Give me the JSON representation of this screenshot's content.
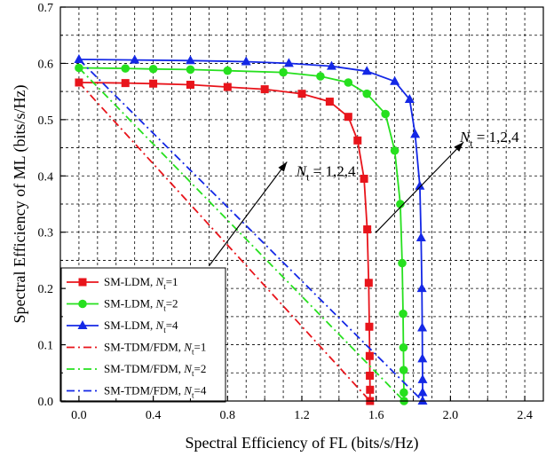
{
  "chart_data": {
    "type": "line",
    "title": "",
    "xlabel": "Spectral Efficiency of FL (bits/s/Hz)",
    "ylabel": "Spectral Efficiency of ML  (bits/s/Hz)",
    "xlim": [
      -0.1,
      2.5
    ],
    "ylim": [
      0.0,
      0.7
    ],
    "x_ticks": [
      0.0,
      0.4,
      0.8,
      1.2,
      1.6,
      2.0,
      2.4
    ],
    "x_tick_labels": [
      "0.0",
      "0.4",
      "0.8",
      "1.2",
      "1.6",
      "2.0",
      "2.4"
    ],
    "y_ticks": [
      0.0,
      0.1,
      0.2,
      0.3,
      0.4,
      0.5,
      0.6,
      0.7
    ],
    "y_tick_labels": [
      "0.0",
      "0.1",
      "0.2",
      "0.3",
      "0.4",
      "0.5",
      "0.6",
      "0.7"
    ],
    "grid": true,
    "legend_position": "bottom-left",
    "series": [
      {
        "legend_prefix": "SM-LDM, ",
        "subscript_base": "N",
        "subscript": "t",
        "legend_suffix": "=1",
        "color": "#e8141b",
        "marker": "square",
        "dash": "solid",
        "points": [
          [
            0.0,
            0.566
          ],
          [
            0.25,
            0.565
          ],
          [
            0.4,
            0.564
          ],
          [
            0.6,
            0.562
          ],
          [
            0.8,
            0.558
          ],
          [
            1.0,
            0.554
          ],
          [
            1.2,
            0.546
          ],
          [
            1.35,
            0.532
          ],
          [
            1.45,
            0.505
          ],
          [
            1.5,
            0.463
          ],
          [
            1.535,
            0.395
          ],
          [
            1.552,
            0.305
          ],
          [
            1.56,
            0.21
          ],
          [
            1.563,
            0.132
          ],
          [
            1.565,
            0.08
          ],
          [
            1.566,
            0.045
          ],
          [
            1.567,
            0.02
          ],
          [
            1.567,
            0.0
          ]
        ]
      },
      {
        "legend_prefix": "SM-LDM, ",
        "subscript_base": "N",
        "subscript": "t",
        "legend_suffix": "=2",
        "color": "#26e01e",
        "marker": "circle",
        "dash": "solid",
        "points": [
          [
            0.0,
            0.592
          ],
          [
            0.25,
            0.591
          ],
          [
            0.4,
            0.59
          ],
          [
            0.6,
            0.589
          ],
          [
            0.8,
            0.587
          ],
          [
            1.1,
            0.584
          ],
          [
            1.3,
            0.577
          ],
          [
            1.45,
            0.566
          ],
          [
            1.55,
            0.546
          ],
          [
            1.65,
            0.51
          ],
          [
            1.7,
            0.445
          ],
          [
            1.73,
            0.35
          ],
          [
            1.74,
            0.245
          ],
          [
            1.745,
            0.155
          ],
          [
            1.747,
            0.095
          ],
          [
            1.748,
            0.055
          ],
          [
            1.749,
            0.015
          ],
          [
            1.75,
            0.0
          ]
        ]
      },
      {
        "legend_prefix": "SM-LDM, ",
        "subscript_base": "N",
        "subscript": "t",
        "legend_suffix": "=4",
        "color": "#1428e6",
        "marker": "triangle",
        "dash": "solid",
        "points": [
          [
            0.0,
            0.607
          ],
          [
            0.3,
            0.606
          ],
          [
            0.6,
            0.605
          ],
          [
            0.9,
            0.603
          ],
          [
            1.13,
            0.6
          ],
          [
            1.36,
            0.595
          ],
          [
            1.55,
            0.586
          ],
          [
            1.7,
            0.568
          ],
          [
            1.78,
            0.536
          ],
          [
            1.81,
            0.474
          ],
          [
            1.835,
            0.382
          ],
          [
            1.842,
            0.29
          ],
          [
            1.846,
            0.2
          ],
          [
            1.848,
            0.13
          ],
          [
            1.849,
            0.075
          ],
          [
            1.85,
            0.038
          ],
          [
            1.85,
            0.015
          ],
          [
            1.85,
            0.0
          ]
        ]
      },
      {
        "legend_prefix": "SM-TDM/FDM, ",
        "subscript_base": "N",
        "subscript": "t",
        "legend_suffix": "=1",
        "color": "#e8141b",
        "marker": "none",
        "dash": "dashdot",
        "points": [
          [
            0.0,
            0.566
          ],
          [
            1.567,
            0.0
          ]
        ]
      },
      {
        "legend_prefix": "SM-TDM/FDM, ",
        "subscript_base": "N",
        "subscript": "t",
        "legend_suffix": "=2",
        "color": "#26e01e",
        "marker": "none",
        "dash": "dashdot",
        "points": [
          [
            0.0,
            0.592
          ],
          [
            1.75,
            0.0
          ]
        ]
      },
      {
        "legend_prefix": "SM-TDM/FDM, ",
        "subscript_base": "N",
        "subscript": "t",
        "legend_suffix": "=4",
        "color": "#1428e6",
        "marker": "none",
        "dash": "dashdot",
        "points": [
          [
            0.0,
            0.607
          ],
          [
            1.85,
            0.0
          ]
        ]
      }
    ],
    "annotations": [
      {
        "base": "N",
        "sub": "t",
        "rest": " = 1,2,4",
        "arrow_from": [
          0.7,
          0.24
        ],
        "arrow_to": [
          1.12,
          0.425
        ],
        "text_at": [
          1.17,
          0.4
        ]
      },
      {
        "base": "N",
        "sub": "t",
        "rest": " = 1,2,4",
        "arrow_from": [
          1.6,
          0.3
        ],
        "arrow_to": [
          2.07,
          0.46
        ],
        "text_at": [
          2.05,
          0.46
        ]
      }
    ]
  }
}
